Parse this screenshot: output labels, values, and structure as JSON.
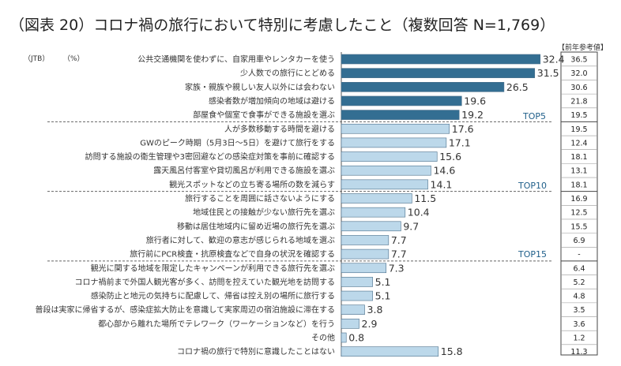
{
  "chart_data": {
    "type": "bar",
    "orientation": "horizontal",
    "title": "（図表 20）コロナ禍の旅行において特別に考慮したこと（複数回答 N=1,769）",
    "source_label": "（JTB）",
    "unit_label": "（%）",
    "prev_header": "【前年参考値】",
    "top_labels": [
      "TOP5",
      "TOP10",
      "TOP15"
    ],
    "categories": [
      "公共交通機関を使わずに、自家用車やレンタカーを使う",
      "少人数での旅行にとどめる",
      "家族・親族や親しい友人以外には会わない",
      "感染者数が増加傾向の地域は避ける",
      "部屋食や個室で食事ができる施設を選ぶ",
      "人が多数移動する時間を避ける",
      "GWのピーク時期（5月3日～5日）を避けて旅行をする",
      "訪問する施設の衛生管理や3密回避などの感染症対策を事前に確認する",
      "露天風呂付客室や貸切風呂が利用できる施設を選ぶ",
      "観光スポットなどの立ち寄る場所の数を減らす",
      "旅行することを周囲に話さないようにする",
      "地域住民との接触が少ない旅行先を選ぶ",
      "移動は居住地域内に留め近場の旅行先を選ぶ",
      "旅行者に対して、歓迎の意志が感じられる地域を選ぶ",
      "旅行前にPCR検査・抗原検査などで自身の状況を確認する",
      "観光に関する地域を限定したキャンペーンが利用できる旅行先を選ぶ",
      "コロナ禍前まで外国人観光客が多く、訪問を控えていた観光地を訪問する",
      "感染防止と地元の気持ちに配慮して、帰省は控え別の場所に旅行する",
      "普段は実家に帰省するが、感染症拡大防止を意識して実家周辺の宿泊施設に滞在する",
      "都心部から離れた場所でテレワーク（ワーケーションなど）を行う",
      "その他",
      "コロナ禍の旅行で特別に意識したことはない"
    ],
    "values": [
      32.4,
      31.5,
      26.5,
      19.6,
      19.2,
      17.6,
      17.1,
      15.6,
      14.6,
      14.1,
      11.5,
      10.4,
      9.7,
      7.7,
      7.7,
      7.3,
      5.1,
      5.1,
      3.8,
      2.9,
      0.8,
      15.8
    ],
    "value_labels": [
      "32.4",
      "31.5",
      "26.5",
      "19.6",
      "19.2",
      "17.6",
      "17.1",
      "15.6",
      "14.6",
      "14.1",
      "11.5",
      "10.4",
      "9.7",
      "7.7",
      "7.7",
      "7.3",
      "5.1",
      "5.1",
      "3.8",
      "2.9",
      "0.8",
      "15.8"
    ],
    "previous_year": [
      "36.5",
      "32.0",
      "30.6",
      "21.8",
      "19.5",
      "19.5",
      "12.4",
      "18.1",
      "13.1",
      "18.1",
      "16.9",
      "12.5",
      "15.5",
      "6.9",
      "-",
      "6.4",
      "5.2",
      "4.8",
      "3.5",
      "3.6",
      "1.2",
      "11.3"
    ],
    "xlim": [
      0,
      35
    ],
    "colors": {
      "top5": "#336e92",
      "other": "#bcd8ea",
      "bar_stroke": "#4a6f8a",
      "title": "#222222"
    }
  }
}
